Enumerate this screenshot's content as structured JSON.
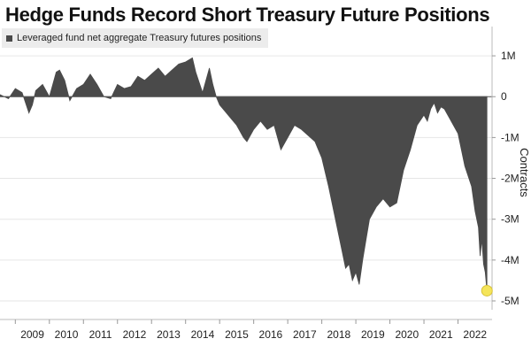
{
  "chart_data": {
    "type": "area",
    "title": "Hedge Funds Record Short Treasury Future Positions",
    "legend": [
      {
        "name": "Leveraged fund net aggregate Treasury futures positions",
        "color": "#4a4a4a"
      }
    ],
    "ylabel": "Contracts",
    "xlabel": "",
    "xlim": [
      2008.55,
      2023.0
    ],
    "ylim": [
      -5000000,
      1500000
    ],
    "x_ticks": [
      {
        "value": 2009,
        "label": "2009"
      },
      {
        "value": 2010,
        "label": "2010"
      },
      {
        "value": 2011,
        "label": "2011"
      },
      {
        "value": 2012,
        "label": "2012"
      },
      {
        "value": 2013,
        "label": "2013"
      },
      {
        "value": 2014,
        "label": "2014"
      },
      {
        "value": 2015,
        "label": "2015"
      },
      {
        "value": 2016,
        "label": "2016"
      },
      {
        "value": 2017,
        "label": "2017"
      },
      {
        "value": 2018,
        "label": "2018"
      },
      {
        "value": 2019,
        "label": "2019"
      },
      {
        "value": 2020,
        "label": "2020"
      },
      {
        "value": 2021,
        "label": "2021"
      },
      {
        "value": 2022,
        "label": "2022"
      }
    ],
    "y_ticks": [
      {
        "value": 1000000,
        "label": "1M"
      },
      {
        "value": 0,
        "label": "0"
      },
      {
        "value": -1000000,
        "label": "-1M"
      },
      {
        "value": -2000000,
        "label": "-2M"
      },
      {
        "value": -3000000,
        "label": "-3M"
      },
      {
        "value": -4000000,
        "label": "-4M"
      },
      {
        "value": -5000000,
        "label": "-5M"
      }
    ],
    "grid": "horizontal",
    "y_axis_position": "right",
    "highlight": {
      "x": 2022.85,
      "y": -4750000,
      "color": "#f5e55a"
    },
    "series": [
      {
        "name": "Leveraged fund net aggregate Treasury futures positions",
        "color": "#4a4a4a",
        "x": [
          2008.55,
          2008.8,
          2009.0,
          2009.2,
          2009.4,
          2009.5,
          2009.6,
          2009.8,
          2010.0,
          2010.2,
          2010.3,
          2010.45,
          2010.6,
          2010.8,
          2011.0,
          2011.2,
          2011.4,
          2011.6,
          2011.8,
          2012.0,
          2012.2,
          2012.4,
          2012.6,
          2012.8,
          2013.0,
          2013.2,
          2013.4,
          2013.6,
          2013.8,
          2014.0,
          2014.2,
          2014.3,
          2014.5,
          2014.7,
          2014.8,
          2014.9,
          2015.0,
          2015.2,
          2015.5,
          2015.7,
          2015.8,
          2016.0,
          2016.2,
          2016.4,
          2016.6,
          2016.7,
          2016.8,
          2017.0,
          2017.2,
          2017.4,
          2017.6,
          2017.8,
          2018.0,
          2018.2,
          2018.4,
          2018.6,
          2018.7,
          2018.8,
          2018.9,
          2019.0,
          2019.1,
          2019.2,
          2019.3,
          2019.4,
          2019.6,
          2019.8,
          2020.0,
          2020.2,
          2020.4,
          2020.6,
          2020.8,
          2021.0,
          2021.1,
          2021.2,
          2021.3,
          2021.4,
          2021.5,
          2021.6,
          2021.8,
          2022.0,
          2022.2,
          2022.4,
          2022.5,
          2022.6,
          2022.65,
          2022.7,
          2022.75,
          2022.8,
          2022.85
        ],
        "y": [
          50000,
          -50000,
          200000,
          100000,
          -400000,
          -200000,
          150000,
          300000,
          0,
          600000,
          650000,
          400000,
          -100000,
          200000,
          300000,
          550000,
          300000,
          0,
          -50000,
          300000,
          200000,
          250000,
          500000,
          400000,
          550000,
          700000,
          500000,
          650000,
          800000,
          850000,
          950000,
          600000,
          100000,
          700000,
          300000,
          0,
          -200000,
          -400000,
          -700000,
          -1000000,
          -1100000,
          -800000,
          -600000,
          -800000,
          -700000,
          -1000000,
          -1300000,
          -1000000,
          -700000,
          -800000,
          -950000,
          -1100000,
          -1500000,
          -2200000,
          -3000000,
          -3800000,
          -4200000,
          -4100000,
          -4500000,
          -4300000,
          -4600000,
          -4000000,
          -3500000,
          -3000000,
          -2700000,
          -2500000,
          -2700000,
          -2600000,
          -1800000,
          -1300000,
          -700000,
          -450000,
          -600000,
          -300000,
          -150000,
          -400000,
          -250000,
          -300000,
          -600000,
          -900000,
          -1700000,
          -2200000,
          -2800000,
          -3200000,
          -3900000,
          -3500000,
          -4100000,
          -4300000,
          -4750000
        ]
      }
    ]
  }
}
